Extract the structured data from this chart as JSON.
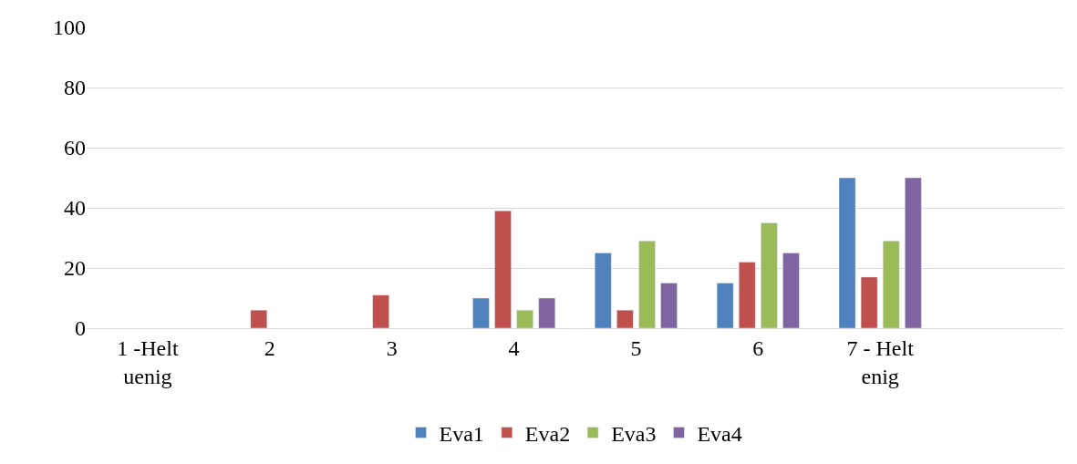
{
  "chart_data": {
    "type": "bar",
    "categories": [
      "1 -Helt uenig",
      "2",
      "3",
      "4",
      "5",
      "6",
      "7 - Helt enig",
      null
    ],
    "series": [
      {
        "name": "Eva1",
        "color": "#4f81bd",
        "values": [
          null,
          null,
          null,
          10,
          25,
          15,
          50,
          null
        ]
      },
      {
        "name": "Eva2",
        "color": "#c0504d",
        "values": [
          null,
          6,
          11,
          39,
          6,
          22,
          17,
          null
        ]
      },
      {
        "name": "Eva3",
        "color": "#9bbb59",
        "values": [
          null,
          null,
          null,
          6,
          29,
          35,
          29,
          null
        ]
      },
      {
        "name": "Eva4",
        "color": "#8064a2",
        "values": [
          null,
          null,
          null,
          10,
          15,
          25,
          50,
          null
        ]
      }
    ],
    "ylim": [
      0,
      100
    ],
    "yticks": [
      0,
      20,
      40,
      60,
      80,
      100
    ],
    "grid": "y",
    "legend": "bottom"
  }
}
